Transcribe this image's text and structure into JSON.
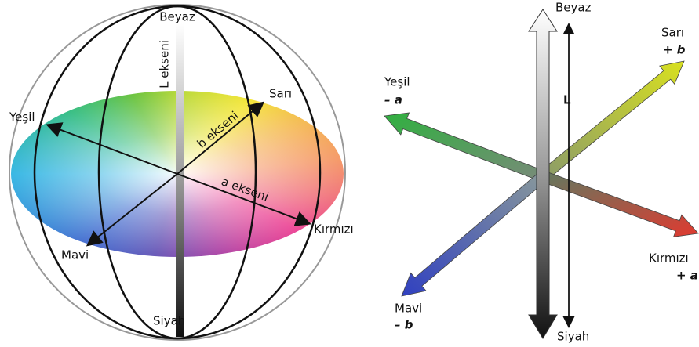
{
  "left": {
    "top": "Beyaz",
    "bottom": "Siyah",
    "l_axis": "L ekseni",
    "a_axis": "a ekseni",
    "b_axis": "b ekseni",
    "yellow": "Sarı",
    "green": "Yeşil",
    "red": "Kırmızı",
    "blue": "Mavi"
  },
  "right": {
    "top": "Beyaz",
    "bottom": "Siyah",
    "l": "L",
    "yellow": "Sarı",
    "plus_b": "+ b",
    "green": "Yeşil",
    "minus_a": "– a",
    "red": "Kırmızı",
    "plus_a": "+ a",
    "blue": "Mavi",
    "minus_b": "– b"
  }
}
